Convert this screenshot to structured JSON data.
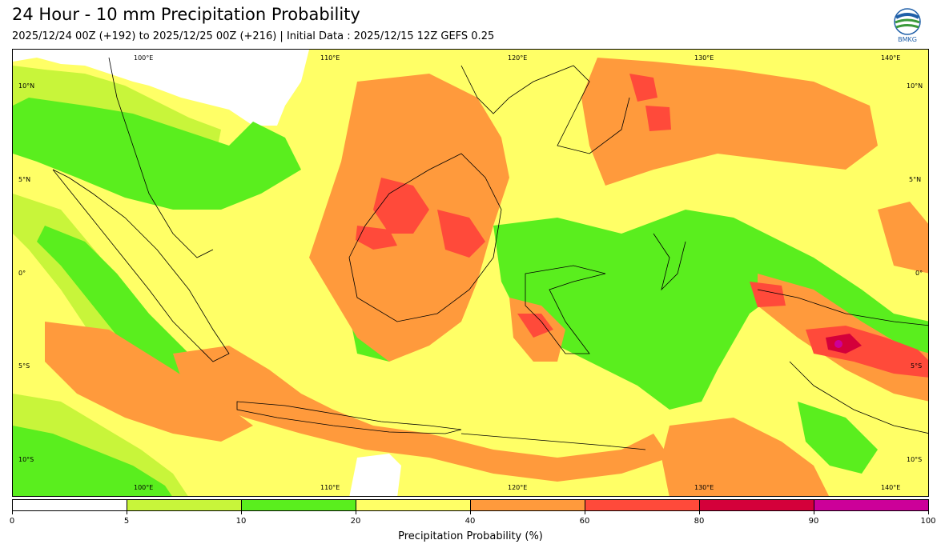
{
  "header": {
    "title": "24 Hour - 10 mm Precipitation Probability",
    "subtitle": "2025/12/24 00Z (+192) to 2025/12/25 00Z (+216) | Initial Data : 2025/12/15 12Z GEFS 0.25"
  },
  "logo": {
    "text": "BMKG",
    "icon": "bmkg-logo-icon"
  },
  "map": {
    "lon_labels": [
      "100°E",
      "110°E",
      "120°E",
      "130°E",
      "140°E"
    ],
    "lat_labels": [
      "10°N",
      "5°N",
      "0°",
      "5°S",
      "10°S"
    ]
  },
  "colorbar": {
    "label": "Precipitation Probability (%)",
    "ticks": [
      "0",
      "5",
      "10",
      "20",
      "40",
      "60",
      "80",
      "90",
      "100"
    ],
    "colors": [
      "#ffffff",
      "#c8f53a",
      "#5aee1e",
      "#ffff66",
      "#ff9a3c",
      "#ff4a3a",
      "#d4003a",
      "#cc0099"
    ]
  }
}
